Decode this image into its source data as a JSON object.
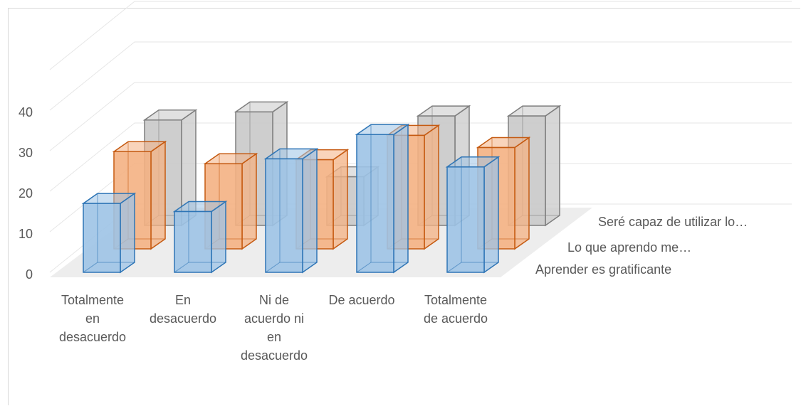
{
  "chart_data": {
    "type": "bar",
    "subtype": "3d-column",
    "title": "",
    "categories": [
      [
        "Totalmente",
        "en",
        "desacuerdo"
      ],
      [
        "En",
        "desacuerdo"
      ],
      [
        "Ni de",
        "acuerdo ni",
        "en",
        "desacuerdo"
      ],
      [
        "De acuerdo"
      ],
      [
        "Totalmente",
        "de acuerdo"
      ]
    ],
    "series": [
      {
        "name": "Aprender es gratificante",
        "values": [
          17,
          15,
          28,
          34,
          26
        ]
      },
      {
        "name": "Lo que aprendo me…",
        "values": [
          24,
          21,
          22,
          28,
          25
        ]
      },
      {
        "name": "Seré capaz de utilizar lo…",
        "values": [
          26,
          28,
          12,
          27,
          27
        ]
      }
    ],
    "y_ticks": [
      "0",
      "10",
      "20",
      "30",
      "40"
    ],
    "ylim": [
      0,
      40
    ],
    "grid": true,
    "colors": {
      "series_fill": [
        "#9dc3e6",
        "#f4b183",
        "#c9c9c9"
      ],
      "series_stroke": [
        "#2e75b6",
        "#c55a11",
        "#7f7f7f"
      ],
      "floor": "#ededed",
      "grid": "#e6e6e6",
      "text": "#595959"
    }
  }
}
